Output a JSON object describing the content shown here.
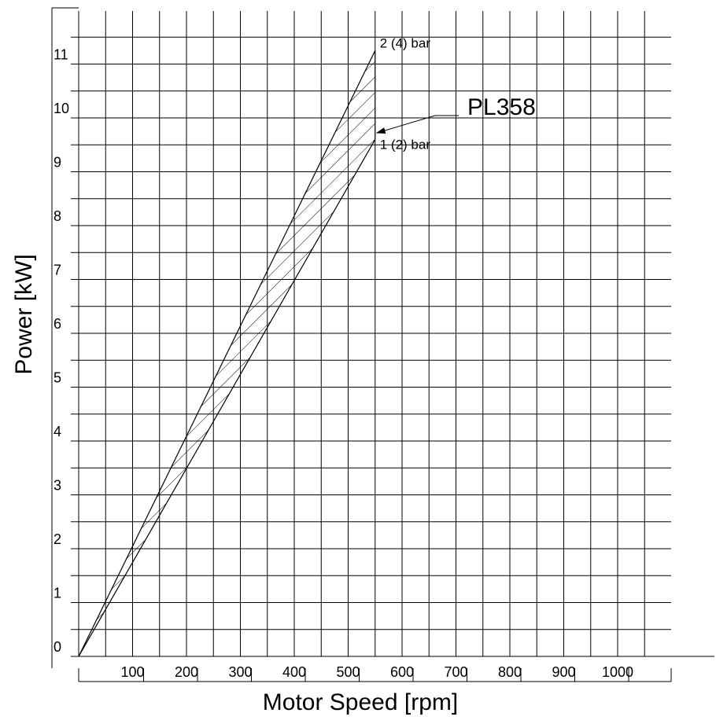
{
  "chart_data": {
    "type": "area",
    "title": "",
    "xlabel": "Motor Speed [rpm]",
    "ylabel": "Power [kW]",
    "xlim": [
      0,
      1100
    ],
    "ylim": [
      0,
      11.5
    ],
    "x_ticks": [
      100,
      200,
      300,
      400,
      500,
      600,
      700,
      800,
      900,
      1000
    ],
    "y_ticks": [
      0,
      1,
      2,
      3,
      4,
      5,
      6,
      7,
      8,
      9,
      10,
      11
    ],
    "grid": true,
    "grid_step_x": 50,
    "grid_step_y": 0.5,
    "series": [
      {
        "name": "2 (4) bar",
        "x": [
          0,
          550
        ],
        "y": [
          0,
          11.25
        ]
      },
      {
        "name": "1 (2) bar",
        "x": [
          0,
          550
        ],
        "y": [
          0,
          9.6
        ]
      }
    ],
    "band": {
      "between": [
        "2 (4) bar",
        "1 (2) bar"
      ],
      "hatched": true,
      "x_range": [
        0,
        550
      ]
    },
    "annotations": [
      {
        "text": "PL358",
        "arrow_to": {
          "x": 550,
          "y": 9.75
        }
      }
    ],
    "colors": {
      "line": "#000000",
      "background": "#ffffff"
    }
  }
}
